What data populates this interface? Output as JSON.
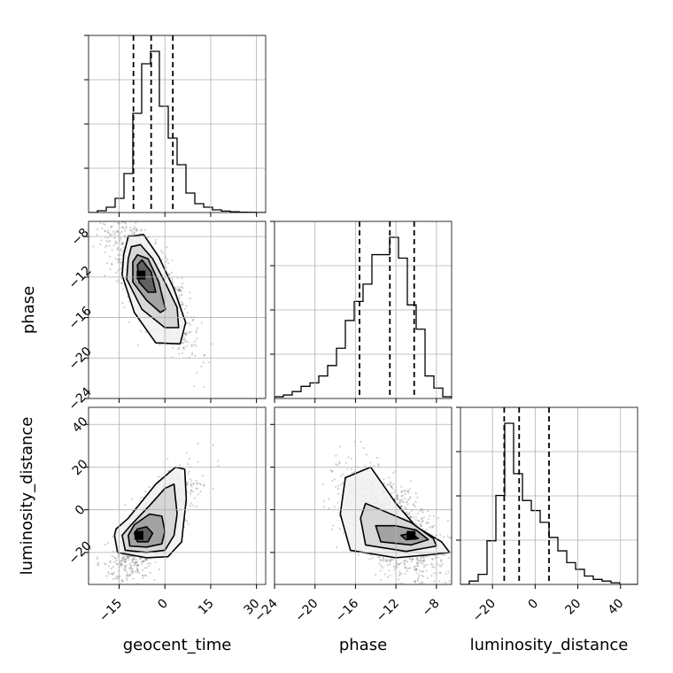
{
  "chart_data": {
    "type": "corner",
    "parameters": [
      "geocent_time",
      "phase",
      "luminosity_distance"
    ],
    "axis_labels": {
      "bottom": [
        "geocent_time",
        "phase",
        "luminosity_distance"
      ],
      "left": [
        "phase",
        "luminosity_distance"
      ]
    },
    "tick_labels": {
      "geocent_time": [
        "−15",
        "0",
        "15",
        "30"
      ],
      "phase": [
        "−24",
        "−20",
        "−16",
        "−12",
        "−8"
      ],
      "luminosity_distance": [
        "−20",
        "0",
        "20",
        "40"
      ]
    },
    "grid": true,
    "ranges": {
      "geocent_time": [
        -25,
        33
      ],
      "phase": [
        -24,
        -6.5
      ],
      "luminosity_distance": [
        -35,
        48
      ]
    },
    "ticks": {
      "geocent_time": [
        -15,
        0,
        15,
        30
      ],
      "phase": [
        -24,
        -20,
        -16,
        -12,
        -8
      ],
      "luminosity_distance": [
        -20,
        0,
        20,
        40
      ]
    },
    "quantiles": {
      "geocent_time": [
        -10.3,
        -4.5,
        2.6
      ],
      "phase": [
        -15.6,
        -12.6,
        -10.2
      ],
      "luminosity_distance": [
        -14.5,
        -7.5,
        6.5
      ]
    },
    "histograms": {
      "geocent_time": {
        "bins": [
          -25,
          -22.1,
          -19.2,
          -16.3,
          -13.4,
          -10.5,
          -7.6,
          -4.7,
          -1.8,
          1.1,
          4.0,
          6.9,
          9.8,
          12.7,
          15.6,
          18.5,
          21.4,
          24.3,
          27.2,
          30.1,
          33
        ],
        "counts": [
          0,
          1,
          3,
          8,
          22,
          56,
          84,
          91,
          60,
          42,
          27,
          11,
          5,
          3,
          1.5,
          0.8,
          0.4,
          0.2,
          0.1,
          0
        ]
      },
      "phase": {
        "bins": [
          -24,
          -23.125,
          -22.25,
          -21.375,
          -20.5,
          -19.625,
          -18.75,
          -17.875,
          -17,
          -16.125,
          -15.25,
          -14.375,
          -13.5,
          -12.625,
          -11.75,
          -10.875,
          -10,
          -9.125,
          -8.25,
          -7.375,
          -6.5
        ],
        "counts": [
          1,
          2,
          4,
          7,
          9,
          13,
          19,
          29,
          45,
          56,
          66,
          83,
          83,
          93,
          81,
          54,
          40,
          13,
          6,
          1
        ]
      },
      "luminosity_distance": {
        "bins": [
          -35,
          -30.85,
          -26.7,
          -22.55,
          -18.4,
          -14.25,
          -10.1,
          -5.95,
          -1.8,
          2.35,
          6.5,
          10.65,
          14.8,
          18.95,
          23.1,
          27.25,
          31.4,
          35.55,
          39.7,
          43.85,
          48
        ],
        "counts": [
          0,
          2,
          6,
          26,
          53,
          96,
          66,
          50,
          44,
          37,
          28,
          20,
          13,
          9,
          5,
          3,
          2,
          1,
          0,
          0
        ]
      }
    },
    "contours_2d": {
      "phase_vs_geocent_time": {
        "peak": [
          -7.8,
          -11.8
        ],
        "levels": [
          [
            [
              -13.5,
              -9.8
            ],
            [
              -14,
              -11.8
            ],
            [
              -10,
              -15.5
            ],
            [
              -3,
              -18.5
            ],
            [
              5,
              -18.6
            ],
            [
              6.8,
              -16.5
            ],
            [
              3,
              -13.2
            ],
            [
              -2,
              -10
            ],
            [
              -7,
              -7.8
            ],
            [
              -12,
              -8
            ]
          ],
          [
            [
              -12,
              -10.2
            ],
            [
              -12.5,
              -12.2
            ],
            [
              -7.5,
              -15.2
            ],
            [
              0,
              -17
            ],
            [
              4.5,
              -17
            ],
            [
              4,
              -15
            ],
            [
              0,
              -12.5
            ],
            [
              -4,
              -10.2
            ],
            [
              -8,
              -8.8
            ],
            [
              -11,
              -9
            ]
          ],
          [
            [
              -10.5,
              -10.5
            ],
            [
              -10.5,
              -12.5
            ],
            [
              -6,
              -14.3
            ],
            [
              -1.5,
              -15.5
            ],
            [
              0.2,
              -15.2
            ],
            [
              -2,
              -12.5
            ],
            [
              -5.5,
              -10.2
            ],
            [
              -9,
              -9.8
            ]
          ],
          [
            [
              -9,
              -10.8
            ],
            [
              -8.5,
              -12.5
            ],
            [
              -5.5,
              -13.5
            ],
            [
              -3,
              -13.5
            ],
            [
              -4.5,
              -11.5
            ],
            [
              -7.5,
              -10.3
            ]
          ]
        ]
      },
      "luminosity_distance_vs_geocent_time": {
        "peak": [
          -8.5,
          -12
        ],
        "levels": [
          [
            [
              -16.5,
              -12
            ],
            [
              -15.5,
              -20
            ],
            [
              -6,
              -22.5
            ],
            [
              1,
              -22
            ],
            [
              5.5,
              -15
            ],
            [
              6,
              -8
            ],
            [
              7,
              5
            ],
            [
              6.5,
              19
            ],
            [
              3.5,
              20
            ],
            [
              -3,
              12
            ],
            [
              -12,
              -4
            ],
            [
              -16,
              -9
            ]
          ],
          [
            [
              -14,
              -12
            ],
            [
              -13,
              -19
            ],
            [
              -6,
              -20
            ],
            [
              0,
              -19
            ],
            [
              3,
              -12
            ],
            [
              4,
              -2
            ],
            [
              3,
              12
            ],
            [
              0,
              10
            ],
            [
              -5,
              2
            ],
            [
              -11,
              -7
            ]
          ],
          [
            [
              -12,
              -12
            ],
            [
              -11.5,
              -17
            ],
            [
              -6,
              -17.5
            ],
            [
              -1,
              -16
            ],
            [
              0,
              -10
            ],
            [
              -1,
              -3
            ],
            [
              -5,
              -2
            ],
            [
              -10,
              -7
            ]
          ],
          [
            [
              -10,
              -11
            ],
            [
              -9,
              -15
            ],
            [
              -5.5,
              -15
            ],
            [
              -4,
              -11
            ],
            [
              -6,
              -8
            ],
            [
              -9,
              -9
            ]
          ]
        ]
      },
      "luminosity_distance_vs_phase": {
        "peak": [
          -10.5,
          -12
        ],
        "levels": [
          [
            [
              -17.5,
              -2
            ],
            [
              -16.5,
              -19
            ],
            [
              -12,
              -22.5
            ],
            [
              -8.5,
              -21
            ],
            [
              -6.7,
              -20
            ],
            [
              -7.5,
              -15
            ],
            [
              -10,
              -8
            ],
            [
              -12,
              3
            ],
            [
              -14.5,
              20
            ],
            [
              -17,
              15
            ]
          ],
          [
            [
              -15.5,
              -4
            ],
            [
              -15,
              -16.5
            ],
            [
              -11,
              -19.5
            ],
            [
              -8,
              -17
            ],
            [
              -8.3,
              -13.5
            ],
            [
              -10.5,
              -6
            ],
            [
              -13,
              -1
            ],
            [
              -15,
              3
            ]
          ],
          [
            [
              -14,
              -7.5
            ],
            [
              -13.5,
              -15
            ],
            [
              -10.5,
              -16.5
            ],
            [
              -8.8,
              -14
            ],
            [
              -10,
              -9.5
            ],
            [
              -12,
              -7.5
            ]
          ],
          [
            [
              -11.5,
              -12
            ],
            [
              -11,
              -14
            ],
            [
              -9.8,
              -13.5
            ],
            [
              -10.5,
              -11
            ]
          ]
        ]
      }
    }
  }
}
